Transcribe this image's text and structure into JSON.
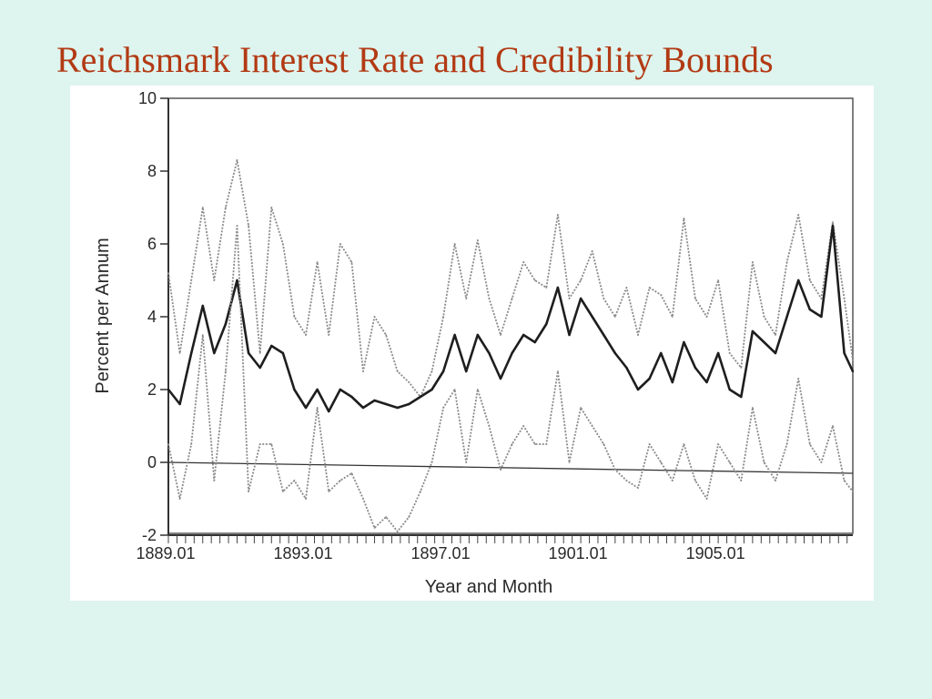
{
  "slide": {
    "title": "Reichsmark Interest Rate and Credibility Bounds",
    "title_color": "#b23a14",
    "background_color": "#def4ee"
  },
  "chart_data": {
    "type": "line",
    "title": "",
    "xlabel": "Year and Month",
    "ylabel": "Percent per Annum",
    "xlim": [
      "1889.01",
      "1908.12"
    ],
    "ylim": [
      -2,
      10
    ],
    "yticks": [
      -2,
      0,
      2,
      4,
      6,
      8,
      10
    ],
    "ytick_labels": [
      "-2",
      "0",
      "2",
      "4",
      "6",
      "8",
      "10"
    ],
    "xticks": [
      "1889.01",
      "1893.01",
      "1897.01",
      "1901.01",
      "1905.01"
    ],
    "grid": false,
    "legend": "none",
    "reference_line": {
      "description": "sloped zero line",
      "start": [
        "1889.01",
        0.0
      ],
      "end": [
        "1908.12",
        -0.3
      ]
    },
    "x": [
      "1889.01",
      "1889.05",
      "1889.09",
      "1890.01",
      "1890.05",
      "1890.09",
      "1891.01",
      "1891.05",
      "1891.09",
      "1892.01",
      "1892.05",
      "1892.09",
      "1893.01",
      "1893.05",
      "1893.09",
      "1894.01",
      "1894.05",
      "1894.09",
      "1895.01",
      "1895.05",
      "1895.09",
      "1896.01",
      "1896.05",
      "1896.09",
      "1897.01",
      "1897.05",
      "1897.09",
      "1898.01",
      "1898.05",
      "1898.09",
      "1899.01",
      "1899.05",
      "1899.09",
      "1900.01",
      "1900.05",
      "1900.09",
      "1901.01",
      "1901.05",
      "1901.09",
      "1902.01",
      "1902.05",
      "1902.09",
      "1903.01",
      "1903.05",
      "1903.09",
      "1904.01",
      "1904.05",
      "1904.09",
      "1905.01",
      "1905.05",
      "1905.09",
      "1906.01",
      "1906.05",
      "1906.09",
      "1907.01",
      "1907.05",
      "1907.09",
      "1908.01",
      "1908.05",
      "1908.09",
      "1908.12"
    ],
    "series": [
      {
        "role": "upper credibility bound",
        "style": "dotted",
        "values": [
          5.2,
          3.0,
          5.0,
          7.0,
          5.0,
          7.0,
          8.3,
          6.5,
          3.0,
          7.0,
          6.0,
          4.0,
          3.5,
          5.5,
          3.5,
          6.0,
          5.5,
          2.5,
          4.0,
          3.5,
          2.5,
          2.2,
          1.8,
          2.5,
          4.0,
          6.0,
          4.5,
          6.1,
          4.5,
          3.5,
          4.5,
          5.5,
          5.0,
          4.8,
          6.8,
          4.5,
          5.0,
          5.8,
          4.5,
          4.0,
          4.8,
          3.5,
          4.8,
          4.6,
          4.0,
          6.7,
          4.5,
          4.0,
          5.0,
          3.0,
          2.6,
          5.5,
          4.0,
          3.5,
          5.5,
          6.8,
          5.0,
          4.5,
          6.6,
          4.5,
          2.8
        ]
      },
      {
        "role": "interest rate",
        "style": "solid",
        "values": [
          2.0,
          1.6,
          3.0,
          4.3,
          3.0,
          3.8,
          5.0,
          3.0,
          2.6,
          3.2,
          3.0,
          2.0,
          1.5,
          2.0,
          1.4,
          2.0,
          1.8,
          1.5,
          1.7,
          1.6,
          1.5,
          1.6,
          1.8,
          2.0,
          2.5,
          3.5,
          2.5,
          3.5,
          3.0,
          2.3,
          3.0,
          3.5,
          3.3,
          3.8,
          4.8,
          3.5,
          4.5,
          4.0,
          3.5,
          3.0,
          2.6,
          2.0,
          2.3,
          3.0,
          2.2,
          3.3,
          2.6,
          2.2,
          3.0,
          2.0,
          1.8,
          3.6,
          3.3,
          3.0,
          4.0,
          5.0,
          4.2,
          4.0,
          6.5,
          3.0,
          2.5
        ]
      },
      {
        "role": "lower credibility bound",
        "style": "dotted",
        "values": [
          0.5,
          -1.0,
          0.5,
          3.5,
          -0.5,
          2.5,
          6.5,
          -0.8,
          0.5,
          0.5,
          -0.8,
          -0.5,
          -1.0,
          1.5,
          -0.8,
          -0.5,
          -0.3,
          -1.0,
          -1.8,
          -1.5,
          -1.9,
          -1.5,
          -0.8,
          0.0,
          1.5,
          2.0,
          0.0,
          2.0,
          1.0,
          -0.2,
          0.5,
          1.0,
          0.5,
          0.5,
          2.5,
          0.0,
          1.5,
          1.0,
          0.5,
          -0.2,
          -0.5,
          -0.7,
          0.5,
          0.0,
          -0.5,
          0.5,
          -0.5,
          -1.0,
          0.5,
          0.0,
          -0.5,
          1.5,
          0.0,
          -0.5,
          0.5,
          2.3,
          0.5,
          0.0,
          1.0,
          -0.5,
          -0.8
        ]
      }
    ]
  }
}
